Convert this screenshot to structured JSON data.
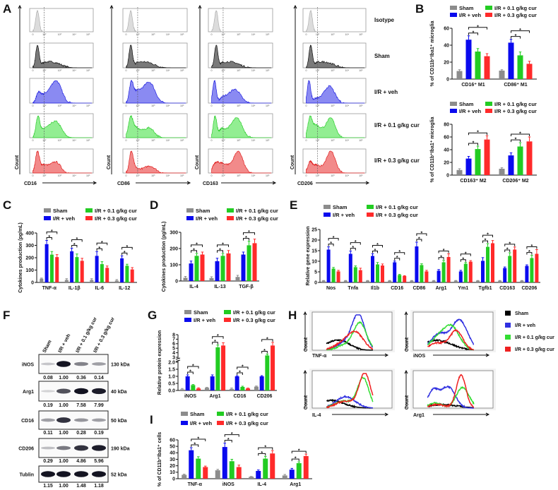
{
  "panel_labels": {
    "A": "A",
    "B": "B",
    "C": "C",
    "D": "D",
    "E": "E",
    "F": "F",
    "G": "G",
    "H": "H",
    "I": "I"
  },
  "groups": [
    "Sham",
    "I/R + veh",
    "I/R + 0.1 g/kg cur",
    "I/R + 0.3 g/kg cur"
  ],
  "colors": {
    "sham": "#8c8c8c",
    "veh": "#0a0aee",
    "cur01": "#22cc22",
    "cur03": "#ff2a2a",
    "hist_sham": "#000000",
    "hist_veh": "#3030e0",
    "hist_cur01": "#33dd33",
    "hist_cur03": "#ee2020"
  },
  "sig_label": "*",
  "panel_a": {
    "row_labels": [
      "Isotype",
      "Sham",
      "I/R + veh",
      "I/R + 0.1 g/kg cur",
      "I/R + 0.3 g/kg cur"
    ],
    "markers": [
      "CD16",
      "CD86",
      "CD163",
      "CD206"
    ],
    "y_label": "Count",
    "ticks": [
      "0",
      "10²",
      "10³",
      "10⁴",
      "10⁵"
    ]
  },
  "panel_f": {
    "lanes": [
      "Sham",
      "I/R + veh",
      "I/R + 0.1 g/kg cur",
      "I/R + 0.3 g/kg cur"
    ],
    "rows": [
      {
        "protein": "iNOS",
        "kda": "130 kDa",
        "values": [
          "0.08",
          "1.00",
          "0.36",
          "0.14"
        ],
        "band": [
          0.12,
          1,
          0.45,
          0.3
        ]
      },
      {
        "protein": "Arg1",
        "kda": "40 kDa",
        "values": [
          "0.19",
          "1.00",
          "7.58",
          "7.99"
        ],
        "band": [
          0.05,
          0.7,
          1,
          0.95
        ]
      },
      {
        "protein": "CD16",
        "kda": "50 kDa",
        "values": [
          "0.11",
          "1.00",
          "0.28",
          "0.19"
        ],
        "band": [
          0.3,
          0.85,
          0.35,
          0.3
        ]
      },
      {
        "protein": "CD206",
        "kda": "190 kDa",
        "values": [
          "0.29",
          "1.00",
          "4.86",
          "5.96"
        ],
        "band": [
          0.15,
          0.5,
          0.85,
          0.95
        ]
      },
      {
        "protein": "Tublin",
        "kda": "52 kDa",
        "values": [
          "1.15",
          "1.00",
          "1.48",
          "1.18"
        ],
        "band": [
          1,
          1,
          1,
          1
        ]
      }
    ]
  },
  "panel_h": {
    "y_label": "Count",
    "legend": [
      "Sham",
      "I/R + veh",
      "I/R + 0.1 g/kg cur",
      "I/R + 0.3 g/kg cur"
    ]
  },
  "chart_data": [
    {
      "id": "B1",
      "type": "bar",
      "ylabel": "% of CD11b⁺Iba1⁺ microglia",
      "ylim": [
        0,
        60
      ],
      "yticks": [
        "0",
        "20",
        "40",
        "60"
      ],
      "ytick_values": [
        0,
        20,
        40,
        60
      ],
      "categories": [
        "CD16⁺ M1",
        "CD86⁺ M1"
      ],
      "values": [
        [
          9.5,
          46.5,
          32.5,
          27
        ],
        [
          10,
          43,
          28,
          18
        ]
      ],
      "sem": [
        [
          1.5,
          4.5,
          3.5,
          3
        ],
        [
          1,
          4,
          4,
          3
        ]
      ]
    },
    {
      "id": "B2",
      "type": "bar",
      "ylabel": "% of CD11b⁺Iba1⁺ microglia",
      "ylim": [
        0,
        80
      ],
      "yticks": [
        "0",
        "20",
        "40",
        "60",
        "80"
      ],
      "ytick_values": [
        0,
        20,
        40,
        60,
        80
      ],
      "categories": [
        "CD163⁺ M2",
        "CD206⁺ M2"
      ],
      "values": [
        [
          8,
          26,
          41,
          56
        ],
        [
          10,
          31,
          45,
          53
        ]
      ],
      "sem": [
        [
          2,
          3.5,
          4.5,
          6
        ],
        [
          1.5,
          4,
          6,
          7
        ]
      ]
    },
    {
      "id": "C",
      "type": "bar",
      "ylabel": "Cytokines production (pg/mL)",
      "ylim": [
        0,
        400
      ],
      "yticks": [
        "0",
        "100",
        "200",
        "300",
        "400"
      ],
      "ytick_values": [
        0,
        100,
        200,
        300,
        400
      ],
      "categories": [
        "TNF-α",
        "IL-1β",
        "IL-6",
        "IL-12"
      ],
      "values": [
        [
          30,
          310,
          225,
          205
        ],
        [
          20,
          252,
          205,
          175
        ],
        [
          20,
          215,
          148,
          118
        ],
        [
          15,
          195,
          135,
          105
        ]
      ],
      "sem": [
        [
          5,
          30,
          25,
          20
        ],
        [
          10,
          25,
          25,
          20
        ],
        [
          10,
          35,
          20,
          15
        ],
        [
          8,
          20,
          12,
          15
        ]
      ]
    },
    {
      "id": "D",
      "type": "bar",
      "ylabel": "Cytokines production (pg/mL)",
      "ylim": [
        0,
        300
      ],
      "yticks": [
        "0",
        "100",
        "200",
        "300"
      ],
      "ytick_values": [
        0,
        100,
        200,
        300
      ],
      "categories": [
        "IL-4",
        "IL-13",
        "TGF-β"
      ],
      "values": [
        [
          20,
          108,
          155,
          163
        ],
        [
          18,
          122,
          155,
          170
        ],
        [
          25,
          163,
          220,
          233
        ]
      ],
      "sem": [
        [
          8,
          15,
          15,
          15
        ],
        [
          8,
          18,
          15,
          18
        ],
        [
          10,
          15,
          25,
          25
        ]
      ]
    },
    {
      "id": "E",
      "type": "bar",
      "ylabel": "Relative gene expression",
      "ylim": [
        0,
        25
      ],
      "yticks": [
        "0",
        "5",
        "10",
        "15",
        "20",
        "25"
      ],
      "ytick_values": [
        0,
        5,
        10,
        15,
        20,
        25
      ],
      "categories": [
        "Nos",
        "Tnfa",
        "Il1b",
        "CD16",
        "CD86",
        "Arg1",
        "Ym1",
        "Tgfb1",
        "CD163",
        "CD206"
      ],
      "values": [
        [
          0.8,
          15.5,
          6.5,
          5.2
        ],
        [
          0.8,
          13.5,
          7.2,
          5.8
        ],
        [
          0.8,
          12.5,
          8.5,
          8
        ],
        [
          0.8,
          9.5,
          3.5,
          3
        ],
        [
          0.8,
          17,
          8.2,
          5.2
        ],
        [
          0.8,
          5.5,
          9.5,
          12
        ],
        [
          0.8,
          5.2,
          8.8,
          9.8
        ],
        [
          0.8,
          10.2,
          16.8,
          18.5
        ],
        [
          0.8,
          6.8,
          12.5,
          15.5
        ],
        [
          0.8,
          7.8,
          11.5,
          13.5
        ]
      ],
      "sem": [
        [
          0.1,
          1.3,
          0.6,
          0.5
        ],
        [
          0.1,
          1.3,
          0.6,
          0.9
        ],
        [
          0.1,
          1,
          0.9,
          0.7
        ],
        [
          0.1,
          0.6,
          0.3,
          0.2
        ],
        [
          0.1,
          2,
          0.6,
          0.5
        ],
        [
          0.1,
          0.6,
          0.9,
          1.5
        ],
        [
          0.1,
          0.5,
          0.6,
          0.5
        ],
        [
          0.1,
          1.5,
          1.5,
          1.3
        ],
        [
          0.1,
          0.5,
          1.5,
          1.2
        ],
        [
          0.1,
          0.5,
          1.3,
          2
        ]
      ]
    },
    {
      "id": "G",
      "type": "bar",
      "ylabel": "Relative protein expression",
      "ylim": [
        0,
        8
      ],
      "axis_break": [
        2,
        3
      ],
      "yticks": [
        "0.0",
        "0.5",
        "1.0",
        "1.5",
        "2.0",
        "3",
        "4",
        "5",
        "6",
        "7",
        "8"
      ],
      "ytick_values": [
        0,
        0.5,
        1,
        1.5,
        2,
        3,
        4,
        5,
        6,
        7,
        8
      ],
      "categories": [
        "iNOS",
        "Arg1",
        "CD16",
        "CD206"
      ],
      "values": [
        [
          0.08,
          1.0,
          0.38,
          0.14
        ],
        [
          0.19,
          1.0,
          5.2,
          5.6
        ],
        [
          0.11,
          1.0,
          0.25,
          0.14
        ],
        [
          0.27,
          1.0,
          3.4,
          5.6
        ]
      ],
      "sem": [
        [
          0.06,
          0.1,
          0.04,
          0.05
        ],
        [
          0.03,
          0.1,
          0.5,
          0.6
        ],
        [
          0.06,
          0.05,
          0.05,
          0.03
        ],
        [
          0.04,
          0.05,
          0.3,
          0.7
        ]
      ]
    },
    {
      "id": "I",
      "type": "bar",
      "ylabel": "% of CD11b⁺Iba1⁺ cells",
      "ylim": [
        0,
        60
      ],
      "yticks": [
        "0",
        "10",
        "20",
        "30",
        "40",
        "50",
        "60"
      ],
      "ytick_values": [
        0,
        10,
        20,
        30,
        40,
        50,
        60
      ],
      "categories": [
        "TNF-α",
        "iNOS",
        "IL-4",
        "Arg1"
      ],
      "values": [
        [
          6,
          44,
          31,
          18
        ],
        [
          13,
          49,
          27,
          18
        ],
        [
          3,
          12,
          31,
          39
        ],
        [
          5,
          14,
          24,
          35
        ]
      ],
      "sem": [
        [
          1,
          4,
          3,
          1.5
        ],
        [
          1.5,
          6,
          3,
          3
        ],
        [
          0.5,
          1.5,
          3.5,
          4.5
        ],
        [
          1.5,
          2,
          2,
          3
        ]
      ]
    },
    {
      "id": "A",
      "type": "histogram",
      "note": "approximate gaussian components [log-decade position, spread, relative height]",
      "x_axis_decades": [
        0,
        5
      ],
      "isotype": [
        [
          0.8,
          0.3,
          1
        ]
      ],
      "sham": [
        [
          0.8,
          0.3,
          0.95
        ],
        [
          1.8,
          0.4,
          0.15
        ],
        [
          2.6,
          0.5,
          0.22
        ]
      ],
      "by_marker": {
        "CD16": {
          "veh": [
            [
              1,
              0.4,
              0.45
            ],
            [
              2,
              0.5,
              0.35
            ],
            [
              2.8,
              0.35,
              0.9
            ]
          ],
          "cur01": [
            [
              0.9,
              0.35,
              0.85
            ],
            [
              2,
              0.5,
              0.35
            ],
            [
              2.8,
              0.35,
              0.55
            ]
          ],
          "cur03": [
            [
              0.8,
              0.35,
              0.9
            ],
            [
              1.9,
              0.5,
              0.35
            ],
            [
              2.8,
              0.3,
              0.4
            ]
          ]
        },
        "CD86": {
          "veh": [
            [
              0.9,
              0.35,
              0.85
            ],
            [
              1.9,
              0.5,
              0.5
            ],
            [
              2.8,
              0.35,
              0.75
            ]
          ],
          "cur01": [
            [
              0.8,
              0.4,
              0.85
            ],
            [
              1.8,
              0.5,
              0.4
            ],
            [
              2.8,
              0.3,
              0.35
            ]
          ],
          "cur03": [
            [
              0.9,
              0.35,
              0.95
            ],
            [
              1.8,
              0.4,
              0.2
            ],
            [
              2.8,
              0.35,
              0.3
            ]
          ]
        },
        "CD163": {
          "veh": [
            [
              0.5,
              0.3,
              0.9
            ],
            [
              1.9,
              0.5,
              0.25
            ],
            [
              2.8,
              0.35,
              0.5
            ]
          ],
          "cur01": [
            [
              0.6,
              0.3,
              0.8
            ],
            [
              1.8,
              0.5,
              0.35
            ],
            [
              2.9,
              0.35,
              0.7
            ]
          ],
          "cur03": [
            [
              0.8,
              0.6,
              0.5
            ],
            [
              2,
              0.5,
              0.4
            ],
            [
              3,
              0.3,
              1
            ]
          ]
        },
        "CD206": {
          "veh": [
            [
              0.5,
              0.3,
              0.95
            ],
            [
              1.7,
              0.5,
              0.2
            ],
            [
              2.8,
              0.35,
              0.7
            ]
          ],
          "cur01": [
            [
              0.7,
              0.4,
              0.9
            ],
            [
              1.8,
              0.5,
              0.55
            ],
            [
              2.9,
              0.3,
              0.8
            ]
          ],
          "cur03": [
            [
              0.7,
              0.4,
              0.5
            ],
            [
              1.8,
              0.5,
              0.35
            ],
            [
              2.9,
              0.3,
              0.95
            ]
          ]
        }
      }
    },
    {
      "id": "H",
      "type": "histogram-overlay",
      "markers": [
        "TNF-α",
        "iNOS",
        "IL-4",
        "Arg1"
      ],
      "series": {
        "TNF-α": {
          "sham": [
            [
              1.8,
              0.6,
              0.25
            ],
            [
              1,
              0.5,
              0.1
            ]
          ],
          "veh": [
            [
              2.9,
              0.4,
              1
            ],
            [
              2,
              0.5,
              0.2
            ]
          ],
          "cur01": [
            [
              3,
              0.4,
              0.75
            ],
            [
              2.1,
              0.5,
              0.15
            ]
          ],
          "cur03": [
            [
              2.7,
              0.5,
              0.5
            ],
            [
              1.8,
              0.5,
              0.15
            ]
          ]
        },
        "iNOS": {
          "sham": [
            [
              1.5,
              0.9,
              0.28
            ]
          ],
          "veh": [
            [
              2.9,
              0.5,
              0.85
            ],
            [
              1.6,
              0.5,
              0.45
            ]
          ],
          "cur01": [
            [
              2.4,
              0.5,
              0.65
            ],
            [
              1.5,
              0.5,
              0.3
            ]
          ],
          "cur03": [
            [
              2.7,
              0.4,
              0.55
            ],
            [
              1.5,
              0.5,
              0.2
            ]
          ]
        },
        "IL-4": {
          "sham": [
            [
              1.2,
              0.8,
              0.22
            ]
          ],
          "veh": [
            [
              2.1,
              0.6,
              0.33
            ]
          ],
          "cur01": [
            [
              3.2,
              0.35,
              0.85
            ],
            [
              2,
              0.6,
              0.2
            ]
          ],
          "cur03": [
            [
              3.3,
              0.35,
              1
            ],
            [
              2.1,
              0.6,
              0.2
            ]
          ]
        },
        "Arg1": {
          "sham": [
            [
              1.8,
              1,
              0.1
            ]
          ],
          "veh": [
            [
              1.2,
              0.3,
              0.35
            ],
            [
              1.7,
              0.5,
              0.3
            ],
            [
              2.3,
              0.4,
              0.45
            ]
          ],
          "cur01": [
            [
              1.4,
              0.4,
              0.15
            ],
            [
              3.1,
              0.4,
              0.6
            ]
          ],
          "cur03": [
            [
              1.5,
              0.5,
              0.1
            ],
            [
              3,
              0.3,
              0.95
            ]
          ]
        }
      }
    }
  ]
}
